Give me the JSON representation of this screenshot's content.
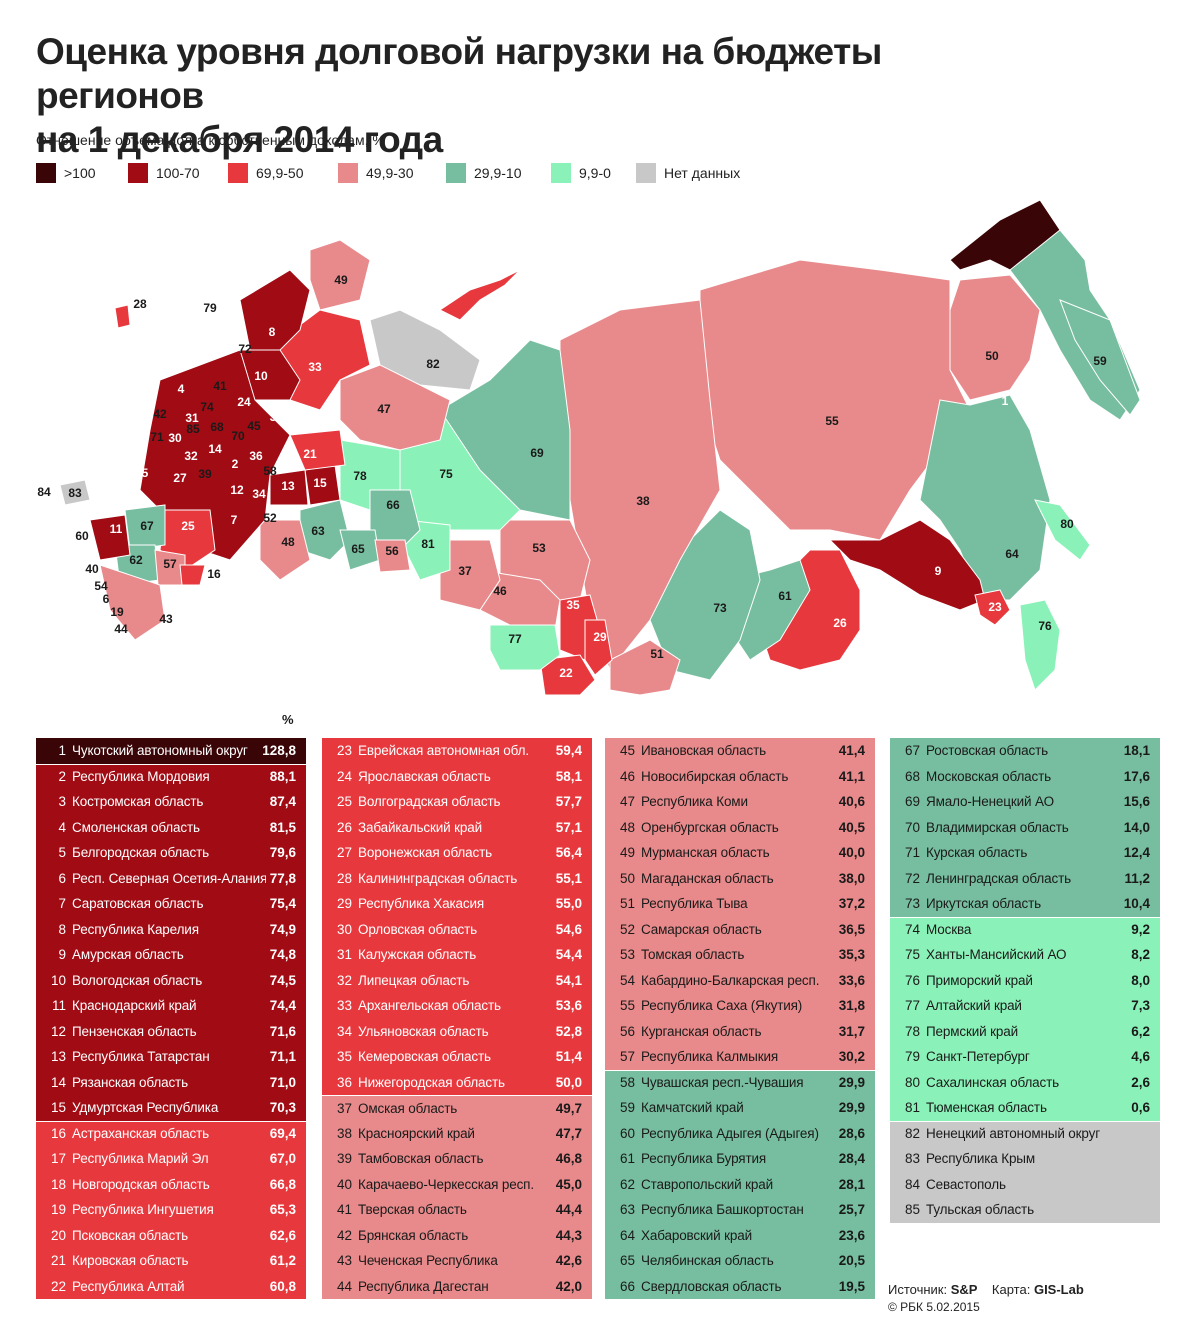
{
  "title_line1": "Оценка уровня долговой нагрузки на бюджеты регионов",
  "title_line2": "на 1 декабря 2014 года",
  "subtitle": "Отношение объема долга к собственным доходам, %",
  "legend": [
    {
      "label": ">100",
      "color": "#3a0506"
    },
    {
      "label": "100-70",
      "color": "#a00b14"
    },
    {
      "label": "69,9-50",
      "color": "#e7383e"
    },
    {
      "label": "49,9-30",
      "color": "#e88a8b"
    },
    {
      "label": "29,9-10",
      "color": "#77bea0"
    },
    {
      "label": "9,9-0",
      "color": "#8af2b8"
    },
    {
      "label": "Нет данных",
      "color": "#c8c8c8"
    }
  ],
  "percent_header": "%",
  "regions": [
    {
      "n": "1",
      "name": "Чукотский автономный округ",
      "value": "128,8",
      "cls": "top"
    },
    {
      "n": "2",
      "name": "Республика Мордовия",
      "value": "88,1",
      "cls": "c1"
    },
    {
      "n": "3",
      "name": "Костромская область",
      "value": "87,4",
      "cls": "c1"
    },
    {
      "n": "4",
      "name": "Смоленская область",
      "value": "81,5",
      "cls": "c1"
    },
    {
      "n": "5",
      "name": "Белгородская область",
      "value": "79,6",
      "cls": "c1"
    },
    {
      "n": "6",
      "name": "Респ. Северная Осетия-Алания",
      "value": "77,8",
      "cls": "c1"
    },
    {
      "n": "7",
      "name": "Саратовская область",
      "value": "75,4",
      "cls": "c1"
    },
    {
      "n": "8",
      "name": "Республика Карелия",
      "value": "74,9",
      "cls": "c1"
    },
    {
      "n": "9",
      "name": "Амурская область",
      "value": "74,8",
      "cls": "c1"
    },
    {
      "n": "10",
      "name": "Вологодская область",
      "value": "74,5",
      "cls": "c1"
    },
    {
      "n": "11",
      "name": "Краснодарский край",
      "value": "74,4",
      "cls": "c1"
    },
    {
      "n": "12",
      "name": "Пензенская область",
      "value": "71,6",
      "cls": "c1"
    },
    {
      "n": "13",
      "name": "Республика Татарстан",
      "value": "71,1",
      "cls": "c1"
    },
    {
      "n": "14",
      "name": "Рязанская область",
      "value": "71,0",
      "cls": "c1"
    },
    {
      "n": "15",
      "name": "Удмуртская Республика",
      "value": "70,3",
      "cls": "c1"
    },
    {
      "n": "16",
      "name": "Астраханская область",
      "value": "69,4",
      "cls": "c2"
    },
    {
      "n": "17",
      "name": "Республика Марий Эл",
      "value": "67,0",
      "cls": "c2"
    },
    {
      "n": "18",
      "name": "Новгородская область",
      "value": "66,8",
      "cls": "c2"
    },
    {
      "n": "19",
      "name": "Республика Ингушетия",
      "value": "65,3",
      "cls": "c2"
    },
    {
      "n": "20",
      "name": "Псковская область",
      "value": "62,6",
      "cls": "c2"
    },
    {
      "n": "21",
      "name": "Кировская область",
      "value": "61,2",
      "cls": "c2"
    },
    {
      "n": "22",
      "name": "Республика Алтай",
      "value": "60,8",
      "cls": "c2"
    },
    {
      "n": "23",
      "name": "Еврейская автономная обл.",
      "value": "59,4",
      "cls": "c2"
    },
    {
      "n": "24",
      "name": "Ярославская область",
      "value": "58,1",
      "cls": "c2"
    },
    {
      "n": "25",
      "name": "Волгоградская область",
      "value": "57,7",
      "cls": "c2"
    },
    {
      "n": "26",
      "name": "Забайкальский край",
      "value": "57,1",
      "cls": "c2"
    },
    {
      "n": "27",
      "name": "Воронежская область",
      "value": "56,4",
      "cls": "c2"
    },
    {
      "n": "28",
      "name": "Калининградская область",
      "value": "55,1",
      "cls": "c2"
    },
    {
      "n": "29",
      "name": "Республика Хакасия",
      "value": "55,0",
      "cls": "c2"
    },
    {
      "n": "30",
      "name": "Орловская область",
      "value": "54,6",
      "cls": "c2"
    },
    {
      "n": "31",
      "name": "Калужская область",
      "value": "54,4",
      "cls": "c2"
    },
    {
      "n": "32",
      "name": "Липецкая область",
      "value": "54,1",
      "cls": "c2"
    },
    {
      "n": "33",
      "name": "Архангельская область",
      "value": "53,6",
      "cls": "c2"
    },
    {
      "n": "34",
      "name": "Ульяновская область",
      "value": "52,8",
      "cls": "c2"
    },
    {
      "n": "35",
      "name": "Кемеровская область",
      "value": "51,4",
      "cls": "c2"
    },
    {
      "n": "36",
      "name": "Нижегородская область",
      "value": "50,0",
      "cls": "c2"
    },
    {
      "n": "37",
      "name": "Омская область",
      "value": "49,7",
      "cls": "c3"
    },
    {
      "n": "38",
      "name": "Красноярский край",
      "value": "47,7",
      "cls": "c3"
    },
    {
      "n": "39",
      "name": "Тамбовская область",
      "value": "46,8",
      "cls": "c3"
    },
    {
      "n": "40",
      "name": "Карачаево-Черкесская респ.",
      "value": "45,0",
      "cls": "c3"
    },
    {
      "n": "41",
      "name": "Тверская область",
      "value": "44,4",
      "cls": "c3"
    },
    {
      "n": "42",
      "name": "Брянская область",
      "value": "44,3",
      "cls": "c3"
    },
    {
      "n": "43",
      "name": "Чеченская Республика",
      "value": "42,6",
      "cls": "c3"
    },
    {
      "n": "44",
      "name": "Республика Дагестан",
      "value": "42,0",
      "cls": "c3"
    },
    {
      "n": "45",
      "name": "Ивановская область",
      "value": "41,4",
      "cls": "c3"
    },
    {
      "n": "46",
      "name": "Новосибирская область",
      "value": "41,1",
      "cls": "c3"
    },
    {
      "n": "47",
      "name": "Республика Коми",
      "value": "40,6",
      "cls": "c3"
    },
    {
      "n": "48",
      "name": "Оренбургская область",
      "value": "40,5",
      "cls": "c3"
    },
    {
      "n": "49",
      "name": "Мурманская область",
      "value": "40,0",
      "cls": "c3"
    },
    {
      "n": "50",
      "name": "Магаданская область",
      "value": "38,0",
      "cls": "c3"
    },
    {
      "n": "51",
      "name": "Республика Тыва",
      "value": "37,2",
      "cls": "c3"
    },
    {
      "n": "52",
      "name": "Самарская область",
      "value": "36,5",
      "cls": "c3"
    },
    {
      "n": "53",
      "name": "Томская область",
      "value": "35,3",
      "cls": "c3"
    },
    {
      "n": "54",
      "name": "Кабардино-Балкарская респ.",
      "value": "33,6",
      "cls": "c3"
    },
    {
      "n": "55",
      "name": "Республика Саха (Якутия)",
      "value": "31,8",
      "cls": "c3"
    },
    {
      "n": "56",
      "name": "Курганская область",
      "value": "31,7",
      "cls": "c3"
    },
    {
      "n": "57",
      "name": "Республика Калмыкия",
      "value": "30,2",
      "cls": "c3"
    },
    {
      "n": "58",
      "name": "Чувашская респ.-Чувашия",
      "value": "29,9",
      "cls": "c4"
    },
    {
      "n": "59",
      "name": "Камчатский край",
      "value": "29,9",
      "cls": "c4"
    },
    {
      "n": "60",
      "name": "Республика Адыгея (Адыгея)",
      "value": "28,6",
      "cls": "c4"
    },
    {
      "n": "61",
      "name": "Республика Бурятия",
      "value": "28,4",
      "cls": "c4"
    },
    {
      "n": "62",
      "name": "Ставропольский край",
      "value": "28,1",
      "cls": "c4"
    },
    {
      "n": "63",
      "name": "Республика Башкортостан",
      "value": "25,7",
      "cls": "c4"
    },
    {
      "n": "64",
      "name": "Хабаровский край",
      "value": "23,6",
      "cls": "c4"
    },
    {
      "n": "65",
      "name": "Челябинская область",
      "value": "20,5",
      "cls": "c4"
    },
    {
      "n": "66",
      "name": "Свердловская область",
      "value": "19,5",
      "cls": "c4"
    },
    {
      "n": "67",
      "name": "Ростовская область",
      "value": "18,1",
      "cls": "c4"
    },
    {
      "n": "68",
      "name": "Московская область",
      "value": "17,6",
      "cls": "c4"
    },
    {
      "n": "69",
      "name": "Ямало-Ненецкий АО",
      "value": "15,6",
      "cls": "c4"
    },
    {
      "n": "70",
      "name": "Владимирская область",
      "value": "14,0",
      "cls": "c4"
    },
    {
      "n": "71",
      "name": "Курская область",
      "value": "12,4",
      "cls": "c4"
    },
    {
      "n": "72",
      "name": "Ленинградская область",
      "value": "11,2",
      "cls": "c4"
    },
    {
      "n": "73",
      "name": "Иркутская область",
      "value": "10,4",
      "cls": "c4"
    },
    {
      "n": "74",
      "name": "Москва",
      "value": "9,2",
      "cls": "c5"
    },
    {
      "n": "75",
      "name": "Ханты-Мансийский АО",
      "value": "8,2",
      "cls": "c5"
    },
    {
      "n": "76",
      "name": "Приморский край",
      "value": "8,0",
      "cls": "c5"
    },
    {
      "n": "77",
      "name": "Алтайский край",
      "value": "7,3",
      "cls": "c5"
    },
    {
      "n": "78",
      "name": "Пермский край",
      "value": "6,2",
      "cls": "c5"
    },
    {
      "n": "79",
      "name": "Санкт-Петербург",
      "value": "4,6",
      "cls": "c5"
    },
    {
      "n": "80",
      "name": "Сахалинская область",
      "value": "2,6",
      "cls": "c5"
    },
    {
      "n": "81",
      "name": "Тюменская область",
      "value": "0,6",
      "cls": "c5"
    },
    {
      "n": "82",
      "name": "Ненецкий автономный округ",
      "value": "",
      "cls": "c6"
    },
    {
      "n": "83",
      "name": "Республика Крым",
      "value": "",
      "cls": "c6"
    },
    {
      "n": "84",
      "name": "Севастополь",
      "value": "",
      "cls": "c6"
    },
    {
      "n": "85",
      "name": "Тульская область",
      "value": "",
      "cls": "c6"
    }
  ],
  "source_label": "Источник:",
  "source_value": "S&P",
  "map_label": "Карта:",
  "map_value": "GIS-Lab",
  "copyright": "© РБК 5.02.2015"
}
